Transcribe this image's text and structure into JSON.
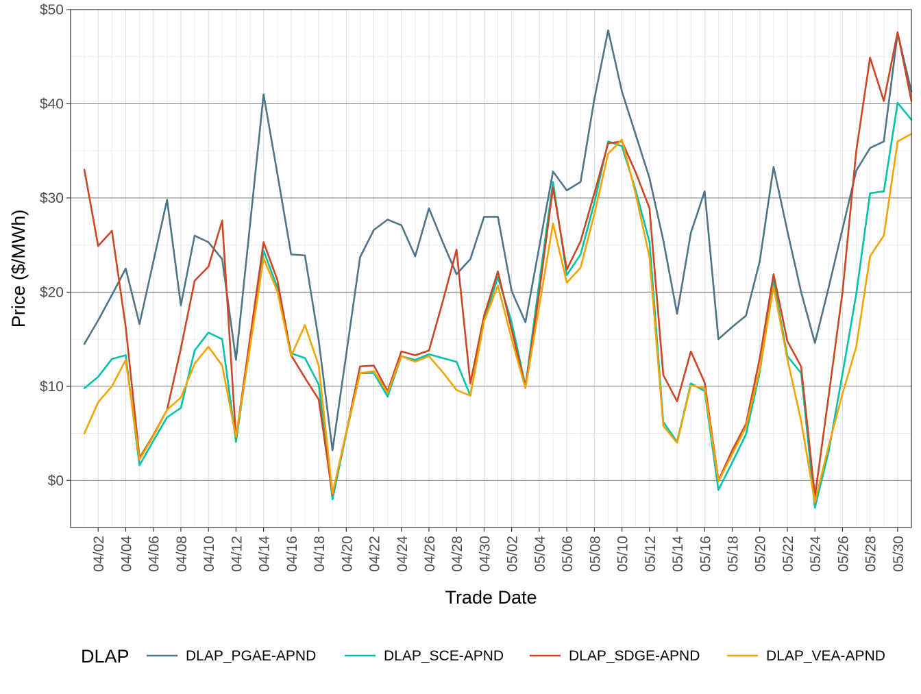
{
  "chart_data": {
    "type": "line",
    "xlabel": "Trade Date",
    "ylabel": "Price ($/MWh)",
    "ylim": [
      -5,
      50
    ],
    "x_range": [
      "03/31",
      "05/31"
    ],
    "grid": true,
    "legend_position": "bottom",
    "legend_title": "DLAP",
    "y_ticks": [
      {
        "value": 0,
        "label": "$0"
      },
      {
        "value": 10,
        "label": "$10"
      },
      {
        "value": 20,
        "label": "$20"
      },
      {
        "value": 30,
        "label": "$30"
      },
      {
        "value": 40,
        "label": "$40"
      },
      {
        "value": 50,
        "label": "$50"
      }
    ],
    "x_ticks": [
      "04/02",
      "04/04",
      "04/06",
      "04/08",
      "04/10",
      "04/12",
      "04/14",
      "04/16",
      "04/18",
      "04/20",
      "04/22",
      "04/24",
      "04/26",
      "04/28",
      "04/30",
      "05/02",
      "05/04",
      "05/06",
      "05/08",
      "05/10",
      "05/12",
      "05/14",
      "05/16",
      "05/18",
      "05/20",
      "05/22",
      "05/24",
      "05/26",
      "05/28",
      "05/30"
    ],
    "x": [
      "04/01",
      "04/02",
      "04/03",
      "04/04",
      "04/05",
      "04/06",
      "04/07",
      "04/08",
      "04/09",
      "04/10",
      "04/11",
      "04/12",
      "04/13",
      "04/14",
      "04/15",
      "04/16",
      "04/17",
      "04/18",
      "04/19",
      "04/20",
      "04/21",
      "04/22",
      "04/23",
      "04/24",
      "04/25",
      "04/26",
      "04/27",
      "04/28",
      "04/29",
      "04/30",
      "05/01",
      "05/02",
      "05/03",
      "05/04",
      "05/05",
      "05/06",
      "05/07",
      "05/08",
      "05/09",
      "05/10",
      "05/11",
      "05/12",
      "05/13",
      "05/14",
      "05/15",
      "05/16",
      "05/17",
      "05/18",
      "05/19",
      "05/20",
      "05/21",
      "05/22",
      "05/23",
      "05/24",
      "05/25",
      "05/26",
      "05/27",
      "05/28",
      "05/29",
      "05/30",
      "05/31"
    ],
    "series": [
      {
        "name": "DLAP_PGAE-APND",
        "color": "#4e7487",
        "values": [
          14.5,
          17.0,
          19.7,
          22.5,
          16.6,
          23.2,
          29.8,
          18.6,
          26.0,
          25.3,
          23.5,
          12.8,
          26.9,
          41.0,
          32.6,
          24.0,
          23.9,
          14.9,
          3.2,
          13.4,
          23.7,
          26.6,
          27.7,
          27.1,
          23.8,
          28.9,
          25.3,
          21.9,
          23.5,
          28.0,
          28.0,
          20.1,
          16.8,
          24.8,
          32.8,
          30.8,
          31.7,
          40.5,
          47.8,
          41.3,
          36.7,
          32.1,
          25.5,
          17.7,
          26.3,
          30.7,
          15.0,
          16.3,
          17.5,
          23.3,
          33.3,
          26.5,
          20.0,
          14.6,
          20.5,
          26.7,
          32.9,
          35.3,
          36.0,
          47.5,
          41.3
        ]
      },
      {
        "name": "DLAP_SCE-APND",
        "color": "#00c2a9",
        "values": [
          9.8,
          11.0,
          12.9,
          13.3,
          1.6,
          4.2,
          6.7,
          7.7,
          13.8,
          15.7,
          15.0,
          4.1,
          14.2,
          24.4,
          20.5,
          13.5,
          13.0,
          10.2,
          -2.0,
          5.0,
          11.4,
          11.4,
          8.9,
          13.2,
          12.8,
          13.4,
          13.0,
          12.6,
          9.0,
          17.0,
          21.6,
          16.8,
          10.0,
          21.0,
          31.7,
          21.8,
          24.0,
          29.5,
          36.0,
          35.5,
          30.8,
          25.3,
          6.2,
          4.1,
          10.3,
          9.5,
          -1.0,
          1.9,
          4.9,
          11.5,
          21.2,
          13.2,
          11.4,
          -2.9,
          3.1,
          11.3,
          19.8,
          30.5,
          30.7,
          40.1,
          38.3
        ]
      },
      {
        "name": "DLAP_SDGE-APND",
        "color": "#cc4624",
        "values": [
          33.0,
          24.9,
          26.5,
          16.3,
          2.4,
          4.8,
          7.5,
          14.0,
          21.2,
          22.7,
          27.6,
          4.5,
          14.9,
          25.3,
          21.3,
          13.3,
          10.9,
          8.6,
          -1.5,
          5.1,
          12.1,
          12.2,
          9.5,
          13.7,
          13.3,
          13.8,
          19.0,
          24.5,
          10.3,
          17.5,
          22.2,
          16.0,
          9.9,
          20.0,
          31.1,
          22.4,
          25.4,
          30.5,
          35.8,
          36.0,
          32.7,
          28.9,
          11.2,
          8.4,
          13.7,
          10.4,
          0.0,
          3.2,
          6.0,
          13.0,
          21.9,
          14.8,
          12.1,
          -1.7,
          9.0,
          20.0,
          35.0,
          44.9,
          40.3,
          47.6,
          40.3
        ]
      },
      {
        "name": "DLAP_VEA-APND",
        "color": "#f5a300",
        "values": [
          5.0,
          8.3,
          10.0,
          12.8,
          2.2,
          4.7,
          7.5,
          8.8,
          12.4,
          14.2,
          12.2,
          4.6,
          14.0,
          23.6,
          20.1,
          13.2,
          16.5,
          12.2,
          -1.4,
          5.1,
          11.4,
          11.6,
          9.3,
          13.2,
          12.6,
          13.2,
          11.5,
          9.6,
          9.0,
          16.9,
          20.7,
          15.0,
          9.8,
          18.5,
          27.3,
          21.0,
          22.6,
          28.3,
          34.7,
          36.2,
          30.4,
          23.7,
          5.8,
          4.0,
          10.1,
          9.8,
          -0.1,
          2.8,
          5.7,
          11.8,
          20.6,
          12.9,
          6.3,
          -2.3,
          3.7,
          9.2,
          14.2,
          23.8,
          26.0,
          36.0,
          36.8
        ]
      }
    ]
  }
}
